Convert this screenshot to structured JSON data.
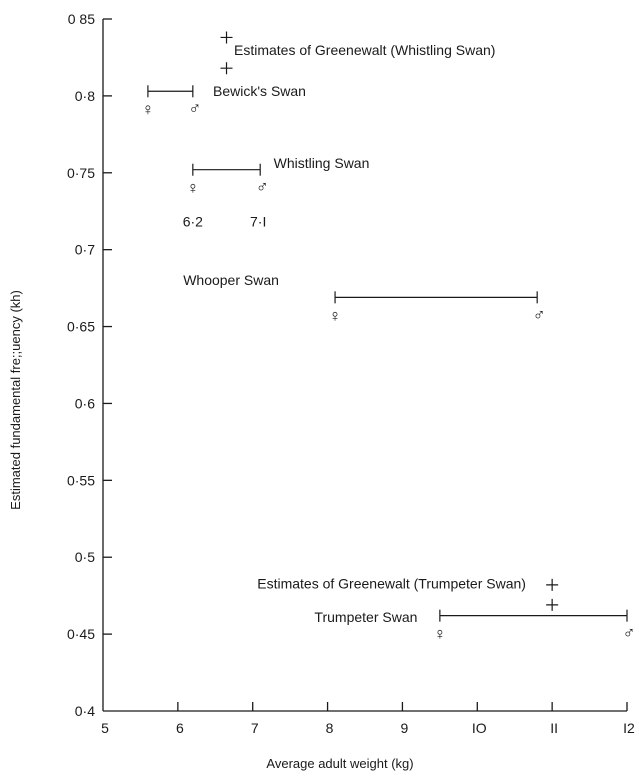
{
  "chart_data": {
    "type": "scatter",
    "title": "",
    "xlabel": "Average adult weight (kg)",
    "ylabel": "Estimated fundamental fre;;uency (kh)",
    "xlim": [
      5,
      12
    ],
    "ylim": [
      0.4,
      0.85
    ],
    "x_ticks": [
      5,
      6,
      7,
      8,
      9,
      10,
      11,
      12
    ],
    "x_tick_labels": [
      "5",
      "6",
      "7",
      "8",
      "9",
      "IO",
      "II",
      "I2"
    ],
    "y_ticks": [
      0.4,
      0.45,
      0.5,
      0.55,
      0.6,
      0.65,
      0.7,
      0.75,
      0.8,
      0.85
    ],
    "y_tick_labels": [
      "0·4",
      "0·45",
      "0·5",
      "0·55",
      "0·6",
      "0·65",
      "0·7",
      "0·75",
      "0·8",
      "0 85"
    ],
    "grid": false,
    "legend": "none",
    "species": [
      {
        "name": "Bewick's Swan",
        "female": {
          "x": 5.6,
          "y": 0.792
        },
        "male": {
          "x": 6.2,
          "y": 0.792
        },
        "range": [
          5.6,
          6.2
        ],
        "range_y": 0.803
      },
      {
        "name": "Whistling Swan",
        "female": {
          "x": 6.2,
          "y": 0.741
        },
        "male": {
          "x": 7.1,
          "y": 0.741
        },
        "range": [
          6.2,
          7.1
        ],
        "range_y": 0.752,
        "value_labels": [
          "6·2",
          "7·I"
        ]
      },
      {
        "name": "Whooper Swan",
        "female": {
          "x": 8.1,
          "y": 0.658
        },
        "male": {
          "x": 10.8,
          "y": 0.658
        },
        "range": [
          8.1,
          10.8
        ],
        "range_y": 0.669
      },
      {
        "name": "Trumpeter Swan",
        "female": {
          "x": 9.5,
          "y": 0.451
        },
        "male": {
          "x": 12.0,
          "y": 0.451
        },
        "range": [
          9.5,
          12.0
        ],
        "range_y": 0.462
      }
    ],
    "greenewalt_estimates": [
      {
        "name": "Estimates of Greenewalt (Whistling Swan)",
        "x": 6.65,
        "points": [
          0.838,
          0.818
        ]
      },
      {
        "name": "Estimates of Greenewalt (Trumpeter Swan)",
        "x": 11.0,
        "points": [
          0.482,
          0.469
        ]
      }
    ],
    "symbols": {
      "female": "♀",
      "male": "♂"
    }
  }
}
